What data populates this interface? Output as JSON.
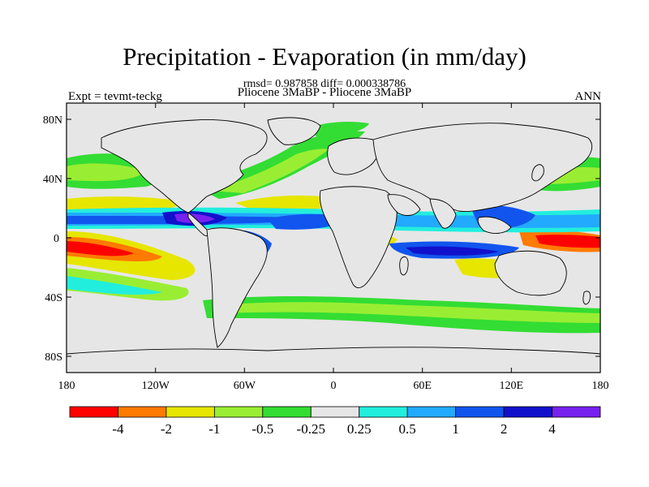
{
  "header": {
    "title": "Precipitation - Evaporation (in mm/day)",
    "stats": "rmsd= 0.987858 diff= 0.000338786",
    "left_label": "Expt = tevmt-teckg",
    "center_label": "Pliocene   3MaBP - Pliocene   3MaBP",
    "right_label": "ANN"
  },
  "axes": {
    "y_ticks": [
      "80N",
      "40N",
      "0",
      "40S",
      "80S"
    ],
    "x_ticks": [
      "180",
      "120W",
      "60W",
      "0",
      "60E",
      "120E",
      "180"
    ]
  },
  "colorbar": {
    "colors": [
      "#ff0000",
      "#ff7a00",
      "#e6e600",
      "#99ee33",
      "#33dd33",
      "#e6e6e6",
      "#22eedd",
      "#22aaff",
      "#1155ee",
      "#1111cc",
      "#7722ee"
    ],
    "labels": [
      "-4",
      "-2",
      "-1",
      "-0.5",
      "-0.25",
      "0.25",
      "0.5",
      "1",
      "2",
      "4"
    ]
  },
  "palette": {
    "land": "#e6e6e6",
    "coast": "#000000"
  }
}
